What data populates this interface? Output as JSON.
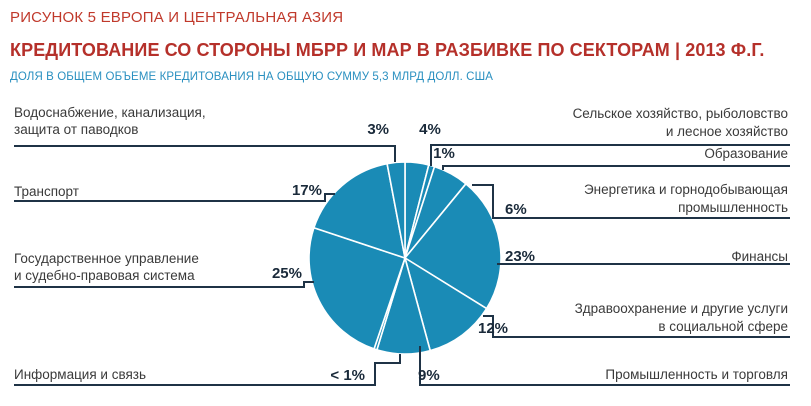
{
  "figure_label": "РИСУНОК 5  ЕВРОПА И ЦЕНТРАЛЬНАЯ АЗИЯ",
  "title": "КРЕДИТОВАНИЕ СО СТОРОНЫ МБРР И МАР В РАЗБИВКЕ ПО СЕКТОРАМ | 2013 Ф.Г.",
  "subtitle": "ДОЛЯ В ОБЩЕМ ОБЪЕМЕ КРЕДИТОВАНИЯ НА ОБЩУЮ СУММУ 5,3 МЛРД ДОЛЛ. США",
  "colors": {
    "slice": "#1a8bb6",
    "stroke": "#ffffff",
    "leader": "#1f3346",
    "accent": "#b5302a"
  },
  "chart_data": {
    "type": "pie",
    "title": "КРЕДИТОВАНИЕ СО СТОРОНЫ МБРР И МАР В РАЗБИВКЕ ПО СЕКТОРАМ | 2013 Ф.Г.",
    "unit": "%",
    "slices": [
      {
        "name": "agriculture",
        "label_lines": [
          "Сельское хозяйство, рыболовство",
          "и лесное хозяйство"
        ],
        "value": 4,
        "value_label": "4%"
      },
      {
        "name": "education",
        "label_lines": [
          "Образование"
        ],
        "value": 1,
        "value_label": "1%"
      },
      {
        "name": "energy",
        "label_lines": [
          "Энергетика и горнодобывающая",
          "промышленность"
        ],
        "value": 6,
        "value_label": "6%"
      },
      {
        "name": "finance",
        "label_lines": [
          "Финансы"
        ],
        "value": 23,
        "value_label": "23%"
      },
      {
        "name": "health",
        "label_lines": [
          "Здравоохранение и другие услуги",
          "в социальной сфере"
        ],
        "value": 12,
        "value_label": "12%"
      },
      {
        "name": "industry",
        "label_lines": [
          "Промышленность и торговля"
        ],
        "value": 9,
        "value_label": "9%"
      },
      {
        "name": "ict",
        "label_lines": [
          "Информация и связь"
        ],
        "value": 0.5,
        "value_label": "< 1%"
      },
      {
        "name": "governance",
        "label_lines": [
          "Государственное управление",
          "и судебно-правовая система"
        ],
        "value": 25,
        "value_label": "25%"
      },
      {
        "name": "transport",
        "label_lines": [
          "Транспорт"
        ],
        "value": 17,
        "value_label": "17%"
      },
      {
        "name": "water",
        "label_lines": [
          "Водоснабжение, канализация,",
          "защита от паводков"
        ],
        "value": 3,
        "value_label": "3%"
      }
    ]
  }
}
